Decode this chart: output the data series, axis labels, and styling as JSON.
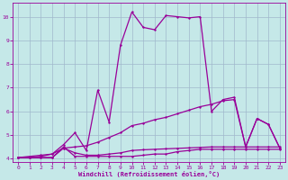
{
  "xlabel": "Windchill (Refroidissement éolien,°C)",
  "bg_color": "#c5e8e8",
  "grid_color": "#a0b8cc",
  "line_color": "#990099",
  "xlim": [
    -0.5,
    23.5
  ],
  "ylim": [
    3.85,
    10.6
  ],
  "xticks": [
    0,
    1,
    2,
    3,
    4,
    5,
    6,
    7,
    8,
    9,
    10,
    11,
    12,
    13,
    14,
    15,
    16,
    17,
    18,
    19,
    20,
    21,
    22,
    23
  ],
  "yticks": [
    4,
    5,
    6,
    7,
    8,
    9,
    10
  ],
  "line1_x": [
    0,
    1,
    2,
    3,
    4,
    5,
    6,
    7,
    8,
    9,
    10,
    11,
    12,
    13,
    14,
    15,
    16,
    17,
    18,
    19,
    20,
    21,
    22,
    23
  ],
  "line1_y": [
    4.05,
    4.05,
    4.05,
    4.05,
    4.5,
    4.1,
    4.1,
    4.1,
    4.1,
    4.1,
    4.1,
    4.15,
    4.2,
    4.2,
    4.3,
    4.35,
    4.4,
    4.4,
    4.4,
    4.4,
    4.4,
    4.4,
    4.4,
    4.4
  ],
  "line2_x": [
    0,
    1,
    2,
    3,
    4,
    5,
    6,
    7,
    8,
    9,
    10,
    11,
    12,
    13,
    14,
    15,
    16,
    17,
    18,
    19,
    20,
    21,
    22,
    23
  ],
  "line2_y": [
    4.05,
    4.05,
    4.1,
    4.2,
    4.6,
    5.1,
    4.35,
    6.9,
    5.55,
    8.8,
    10.2,
    9.55,
    9.45,
    10.05,
    10.0,
    9.95,
    10.0,
    6.0,
    6.5,
    6.6,
    4.5,
    5.7,
    5.45,
    4.45
  ],
  "line3_x": [
    0,
    1,
    2,
    3,
    4,
    5,
    6,
    7,
    8,
    9,
    10,
    11,
    12,
    13,
    14,
    15,
    16,
    17,
    18,
    19,
    20,
    21,
    22,
    23
  ],
  "line3_y": [
    4.05,
    4.1,
    4.15,
    4.2,
    4.45,
    4.5,
    4.55,
    4.7,
    4.9,
    5.1,
    5.4,
    5.5,
    5.65,
    5.75,
    5.9,
    6.05,
    6.2,
    6.3,
    6.45,
    6.5,
    4.5,
    5.7,
    5.45,
    4.45
  ],
  "line4_x": [
    0,
    1,
    2,
    3,
    4,
    5,
    6,
    7,
    8,
    9,
    10,
    11,
    12,
    13,
    14,
    15,
    16,
    17,
    18,
    19,
    20,
    21,
    22,
    23
  ],
  "line4_y": [
    4.05,
    4.05,
    4.05,
    4.05,
    4.45,
    4.25,
    4.15,
    4.15,
    4.2,
    4.25,
    4.35,
    4.38,
    4.4,
    4.42,
    4.44,
    4.46,
    4.48,
    4.5,
    4.5,
    4.5,
    4.5,
    4.5,
    4.5,
    4.5
  ]
}
